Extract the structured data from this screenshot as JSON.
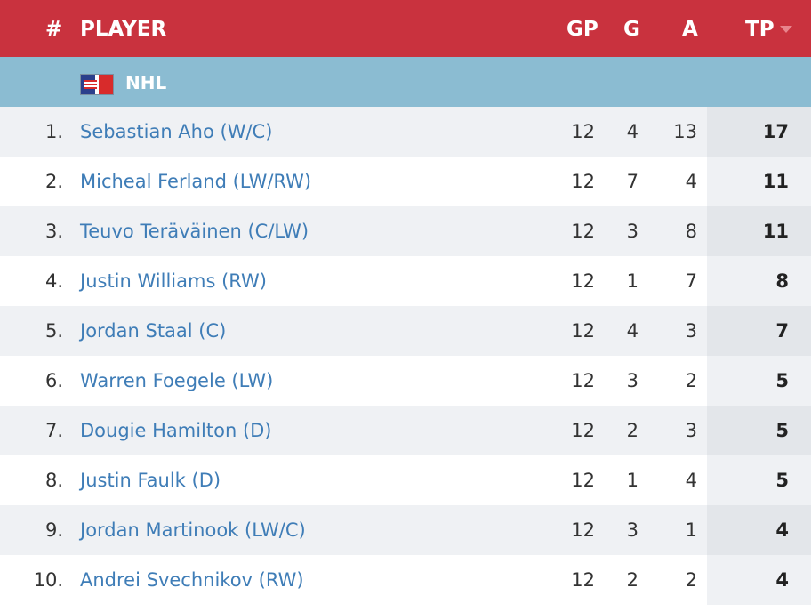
{
  "header": {
    "num": "#",
    "player": "PLAYER",
    "gp": "GP",
    "g": "G",
    "a": "A",
    "tp": "TP"
  },
  "league": {
    "name": "NHL",
    "flag_icon": "usa-canada-flag-icon"
  },
  "colors": {
    "header_bg": "#c9323e",
    "league_bg": "#8bbcd2",
    "link": "#3f7db7"
  },
  "players": [
    {
      "rank": "1.",
      "name": "Sebastian Aho (W/C)",
      "gp": "12",
      "g": "4",
      "a": "13",
      "tp": "17"
    },
    {
      "rank": "2.",
      "name": "Micheal Ferland (LW/RW)",
      "gp": "12",
      "g": "7",
      "a": "4",
      "tp": "11"
    },
    {
      "rank": "3.",
      "name": "Teuvo Teräväinen (C/LW)",
      "gp": "12",
      "g": "3",
      "a": "8",
      "tp": "11"
    },
    {
      "rank": "4.",
      "name": "Justin Williams (RW)",
      "gp": "12",
      "g": "1",
      "a": "7",
      "tp": "8"
    },
    {
      "rank": "5.",
      "name": "Jordan Staal (C)",
      "gp": "12",
      "g": "4",
      "a": "3",
      "tp": "7"
    },
    {
      "rank": "6.",
      "name": "Warren Foegele (LW)",
      "gp": "12",
      "g": "3",
      "a": "2",
      "tp": "5"
    },
    {
      "rank": "7.",
      "name": "Dougie Hamilton (D)",
      "gp": "12",
      "g": "2",
      "a": "3",
      "tp": "5"
    },
    {
      "rank": "8.",
      "name": "Justin Faulk (D)",
      "gp": "12",
      "g": "1",
      "a": "4",
      "tp": "5"
    },
    {
      "rank": "9.",
      "name": "Jordan Martinook (LW/C)",
      "gp": "12",
      "g": "3",
      "a": "1",
      "tp": "4"
    },
    {
      "rank": "10.",
      "name": "Andrei Svechnikov (RW)",
      "gp": "12",
      "g": "2",
      "a": "2",
      "tp": "4"
    }
  ]
}
